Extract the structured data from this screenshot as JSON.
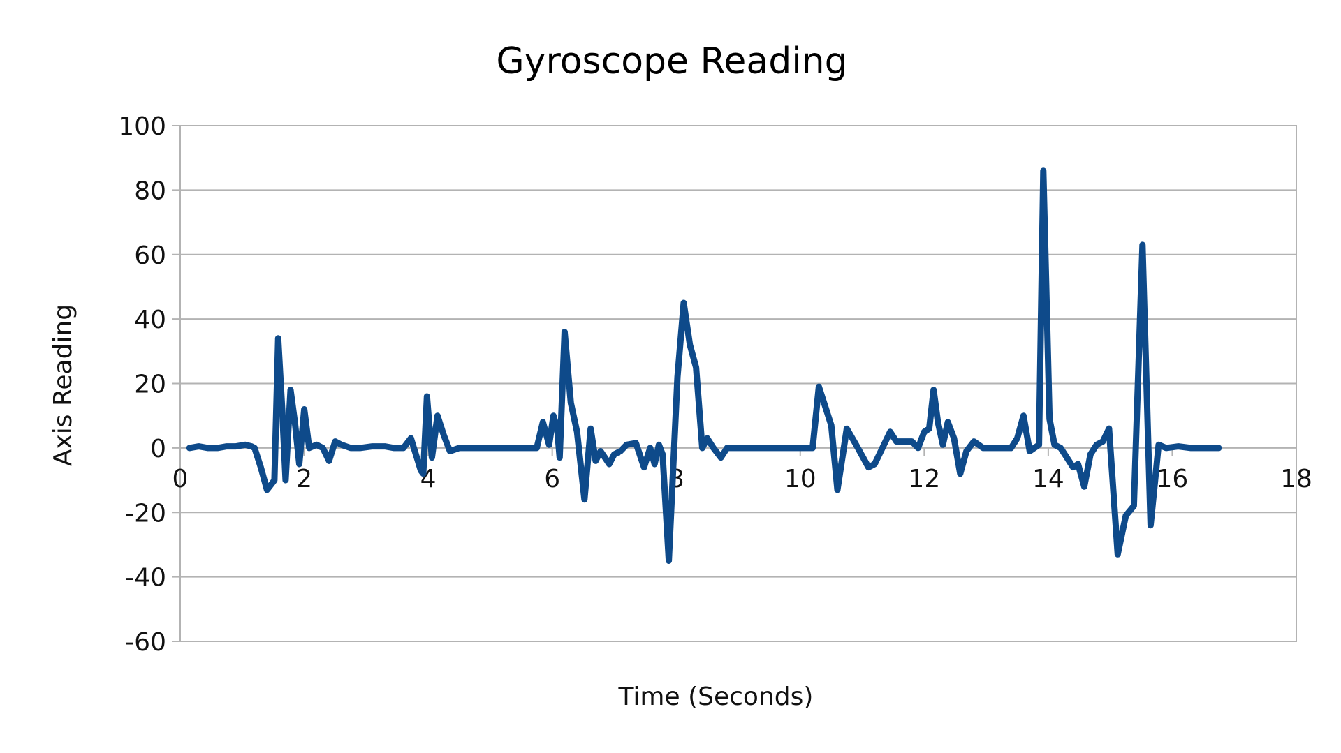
{
  "chart_data": {
    "type": "line",
    "title": "Gyroscope Reading",
    "xlabel": "Time (Seconds)",
    "ylabel": "Axis Reading",
    "xlim": [
      0,
      18
    ],
    "ylim": [
      -60,
      100
    ],
    "x_ticks": [
      0,
      2,
      4,
      6,
      8,
      10,
      12,
      14,
      16,
      18
    ],
    "y_ticks": [
      100,
      80,
      60,
      40,
      20,
      0,
      -20,
      -40,
      -60
    ],
    "grid": {
      "horizontal": true,
      "vertical": false
    },
    "legend": "none",
    "series": [
      {
        "name": "Gyroscope",
        "color": "#0e4a8a",
        "points": [
          [
            0.15,
            0
          ],
          [
            0.3,
            0.5
          ],
          [
            0.45,
            0
          ],
          [
            0.6,
            0
          ],
          [
            0.75,
            0.5
          ],
          [
            0.9,
            0.5
          ],
          [
            1.05,
            1
          ],
          [
            1.15,
            0.5
          ],
          [
            1.2,
            0
          ],
          [
            1.3,
            -6
          ],
          [
            1.4,
            -13
          ],
          [
            1.48,
            -11
          ],
          [
            1.52,
            -10
          ],
          [
            1.58,
            34
          ],
          [
            1.65,
            10
          ],
          [
            1.7,
            -10
          ],
          [
            1.78,
            18
          ],
          [
            1.85,
            8
          ],
          [
            1.92,
            -5
          ],
          [
            2.0,
            12
          ],
          [
            2.08,
            0
          ],
          [
            2.2,
            1
          ],
          [
            2.3,
            0
          ],
          [
            2.4,
            -4
          ],
          [
            2.5,
            2
          ],
          [
            2.6,
            1
          ],
          [
            2.75,
            0
          ],
          [
            2.9,
            0
          ],
          [
            3.1,
            0.5
          ],
          [
            3.3,
            0.5
          ],
          [
            3.45,
            0
          ],
          [
            3.6,
            0
          ],
          [
            3.72,
            3
          ],
          [
            3.8,
            -2
          ],
          [
            3.88,
            -7
          ],
          [
            3.92,
            -8
          ],
          [
            3.98,
            16
          ],
          [
            4.06,
            -3
          ],
          [
            4.15,
            10
          ],
          [
            4.25,
            4
          ],
          [
            4.35,
            -1
          ],
          [
            4.5,
            0
          ],
          [
            4.7,
            0
          ],
          [
            5.0,
            0
          ],
          [
            5.3,
            0
          ],
          [
            5.6,
            0
          ],
          [
            5.75,
            0
          ],
          [
            5.85,
            8
          ],
          [
            5.95,
            1
          ],
          [
            6.02,
            10
          ],
          [
            6.08,
            6
          ],
          [
            6.12,
            -3
          ],
          [
            6.2,
            36
          ],
          [
            6.3,
            14
          ],
          [
            6.4,
            5
          ],
          [
            6.52,
            -16
          ],
          [
            6.62,
            6
          ],
          [
            6.7,
            -4
          ],
          [
            6.78,
            -1
          ],
          [
            6.85,
            -3
          ],
          [
            6.92,
            -5
          ],
          [
            7.0,
            -2
          ],
          [
            7.1,
            -1
          ],
          [
            7.2,
            1
          ],
          [
            7.35,
            1.5
          ],
          [
            7.48,
            -6
          ],
          [
            7.58,
            0
          ],
          [
            7.65,
            -5
          ],
          [
            7.72,
            1
          ],
          [
            7.78,
            -2
          ],
          [
            7.88,
            -35
          ],
          [
            8.02,
            22
          ],
          [
            8.12,
            45
          ],
          [
            8.22,
            32
          ],
          [
            8.32,
            25
          ],
          [
            8.42,
            0
          ],
          [
            8.5,
            3
          ],
          [
            8.6,
            0
          ],
          [
            8.72,
            -3
          ],
          [
            8.82,
            0
          ],
          [
            9.0,
            0
          ],
          [
            9.3,
            0
          ],
          [
            9.6,
            0
          ],
          [
            9.9,
            0
          ],
          [
            10.1,
            0
          ],
          [
            10.2,
            0
          ],
          [
            10.3,
            19
          ],
          [
            10.4,
            13
          ],
          [
            10.5,
            7
          ],
          [
            10.6,
            -13
          ],
          [
            10.75,
            6
          ],
          [
            10.9,
            1
          ],
          [
            11.1,
            -6
          ],
          [
            11.2,
            -5
          ],
          [
            11.35,
            1
          ],
          [
            11.45,
            5
          ],
          [
            11.55,
            2
          ],
          [
            11.7,
            2
          ],
          [
            11.8,
            2
          ],
          [
            11.9,
            0
          ],
          [
            12.0,
            5
          ],
          [
            12.08,
            6
          ],
          [
            12.15,
            18
          ],
          [
            12.22,
            8
          ],
          [
            12.3,
            1
          ],
          [
            12.38,
            8
          ],
          [
            12.48,
            3
          ],
          [
            12.58,
            -8
          ],
          [
            12.68,
            -1
          ],
          [
            12.8,
            2
          ],
          [
            12.95,
            0
          ],
          [
            13.2,
            0
          ],
          [
            13.4,
            0
          ],
          [
            13.5,
            3
          ],
          [
            13.6,
            10
          ],
          [
            13.7,
            -1
          ],
          [
            13.85,
            1
          ],
          [
            13.92,
            86
          ],
          [
            14.02,
            9
          ],
          [
            14.1,
            1
          ],
          [
            14.2,
            0
          ],
          [
            14.3,
            -3
          ],
          [
            14.4,
            -6
          ],
          [
            14.48,
            -5
          ],
          [
            14.58,
            -12
          ],
          [
            14.68,
            -2
          ],
          [
            14.78,
            1
          ],
          [
            14.88,
            2
          ],
          [
            14.98,
            6
          ],
          [
            15.12,
            -33
          ],
          [
            15.25,
            -21
          ],
          [
            15.38,
            -18
          ],
          [
            15.52,
            63
          ],
          [
            15.65,
            -24
          ],
          [
            15.78,
            1
          ],
          [
            15.9,
            0
          ],
          [
            16.1,
            0.5
          ],
          [
            16.3,
            0
          ],
          [
            16.5,
            0
          ],
          [
            16.75,
            0
          ]
        ]
      }
    ]
  }
}
